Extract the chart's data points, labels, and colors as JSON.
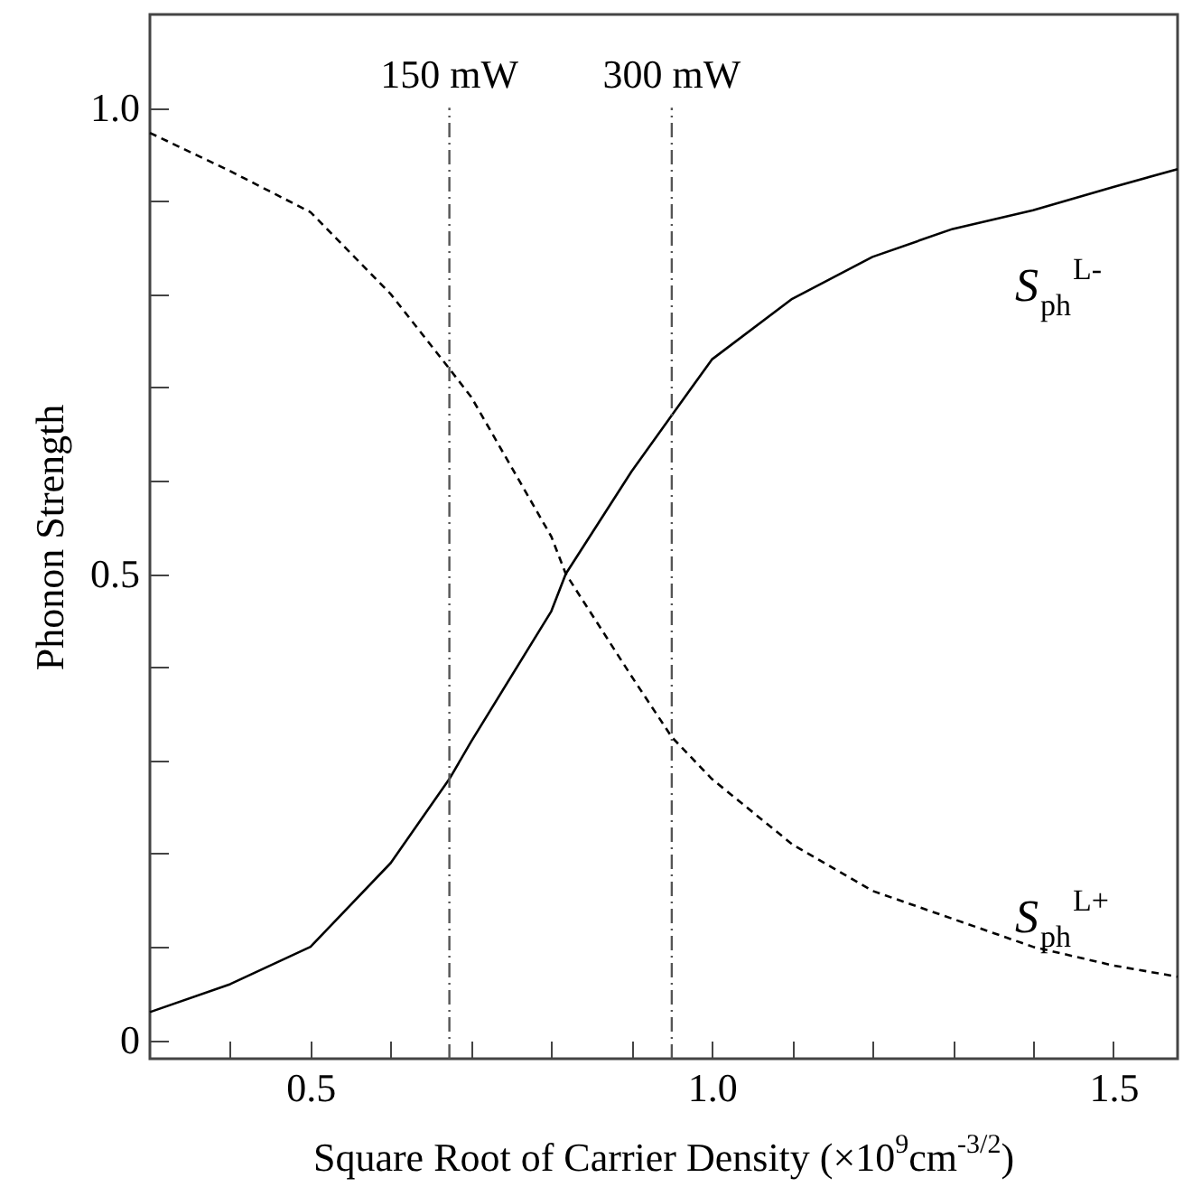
{
  "chart_data": {
    "type": "line",
    "xlabel": "Square Root of Carrier Density (×10$^{9}$cm$^{-3/2}$)",
    "ylabel": "Phonon Strength",
    "x": [
      0.3,
      0.4,
      0.5,
      0.6,
      0.673,
      0.7,
      0.8,
      0.818,
      0.9,
      0.95,
      1.0,
      1.1,
      1.2,
      1.3,
      1.4,
      1.5,
      1.58
    ],
    "series": [
      {
        "name": "S$_{ph}$$^{L-}$",
        "color": "#000000",
        "line_style": "solid",
        "values": [
          0.03,
          0.06,
          0.1,
          0.19,
          0.28,
          0.32,
          0.46,
          0.5,
          0.61,
          0.67,
          0.73,
          0.795,
          0.84,
          0.87,
          0.89,
          0.915,
          0.934
        ]
      },
      {
        "name": "S$_{ph}$$^{L+}$",
        "color": "#000000",
        "line_style": "dashed",
        "values": [
          0.973,
          0.932,
          0.888,
          0.8,
          0.72,
          0.69,
          0.54,
          0.5,
          0.39,
          0.325,
          0.28,
          0.21,
          0.16,
          0.13,
          0.1,
          0.08,
          0.068
        ]
      }
    ],
    "xlim": [
      0.3,
      1.58
    ],
    "ylim": [
      -0.02,
      1.1
    ],
    "xticks": [
      {
        "value": 0.4,
        "label": null
      },
      0.5,
      {
        "value": 0.6,
        "label": null
      },
      {
        "value": 0.7,
        "label": null
      },
      {
        "value": 0.8,
        "label": null
      },
      {
        "value": 0.9,
        "label": null
      },
      {
        "value": 1.0,
        "label": "1.0"
      },
      {
        "value": 1.1,
        "label": null
      },
      {
        "value": 1.2,
        "label": null
      },
      {
        "value": 1.3,
        "label": null
      },
      {
        "value": 1.4,
        "label": null
      },
      1.5
    ],
    "yticks": [
      0,
      {
        "value": 0.1,
        "label": null
      },
      {
        "value": 0.2,
        "label": null
      },
      {
        "value": 0.3,
        "label": null
      },
      {
        "value": 0.4,
        "label": null
      },
      0.5,
      {
        "value": 0.6,
        "label": null
      },
      {
        "value": 0.7,
        "label": null
      },
      {
        "value": 0.8,
        "label": null
      },
      {
        "value": 0.9,
        "label": null
      },
      {
        "value": 1.0,
        "label": "1.0"
      }
    ],
    "ref_lines": [
      {
        "axis": "x",
        "value": 0.673,
        "label": "150 mW",
        "color": "#555555",
        "line_style": "dashdot"
      },
      {
        "axis": "x",
        "value": 0.95,
        "label": "300 mW",
        "color": "#555555",
        "line_style": "dashdot"
      }
    ],
    "grid": false
  }
}
